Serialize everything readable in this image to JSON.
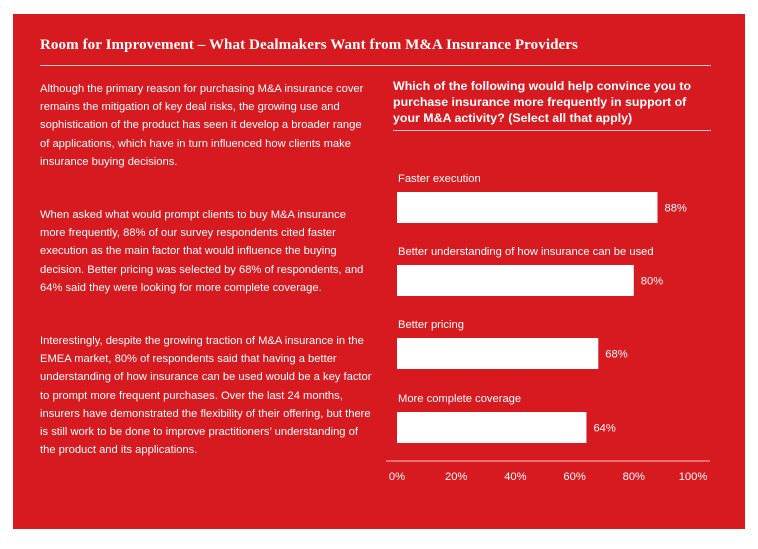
{
  "title": "Room for Improvement – What Dealmakers Want from M&A Insurance Providers",
  "paragraphs": [
    "Although the primary reason for purchasing M&A insurance cover remains the mitigation of key deal risks, the growing use and sophistication of the product has seen it develop a broader range of applications, which have in turn influenced how clients make insurance buying decisions.",
    "When asked what would prompt clients to buy M&A insurance more frequently, 88% of our survey respondents cited faster execution as the main factor that would influence the buying decision. Better pricing was selected by 68% of respondents, and 64% said they were looking for more complete coverage.",
    "Interestingly, despite the growing traction of M&A insurance in the EMEA market, 80% of respondents said that having a better understanding of how insurance can be used would be a key factor to prompt more frequent purchases. Over the last 24 months, insurers have demonstrated the flexibility of their offering, but there is still work to be done to improve practitioners’ understanding of the product and its applications."
  ],
  "colors": {
    "background": "#d71920",
    "bar": "#ffffff",
    "text": "#ffffff"
  },
  "chart_data": {
    "type": "bar",
    "orientation": "horizontal",
    "title": "Which of the following would help convince you to purchase insurance more frequently in support of your M&A activity? (Select all that apply)",
    "categories": [
      "Faster execution",
      "Better understanding of how insurance can be used",
      "Better pricing",
      "More complete coverage"
    ],
    "values": [
      88,
      80,
      68,
      64
    ],
    "value_labels": [
      "88%",
      "80%",
      "68%",
      "64%"
    ],
    "xlim": [
      0,
      100
    ],
    "x_ticks": [
      0,
      20,
      40,
      60,
      80,
      100
    ],
    "x_tick_labels": [
      "0%",
      "20%",
      "40%",
      "60%",
      "80%",
      "100%"
    ],
    "xlabel": "",
    "ylabel": "",
    "grid": false
  }
}
